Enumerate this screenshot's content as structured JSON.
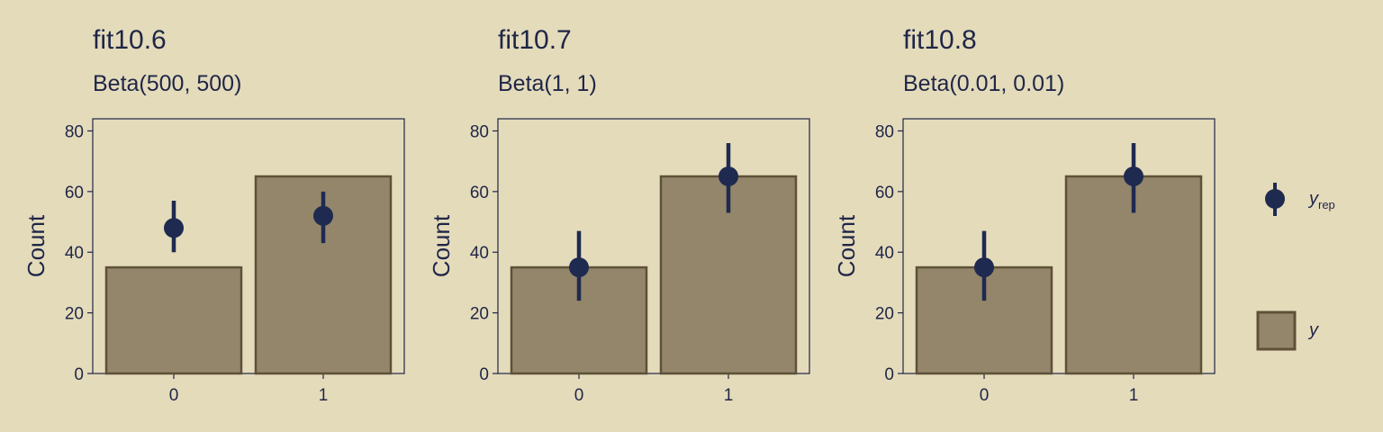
{
  "colors": {
    "background": "#e4dbbb",
    "bar_fill": "#94866a",
    "bar_stroke": "#5e5138",
    "point": "#1f2a50",
    "text": "#1f2647"
  },
  "legend": {
    "yrep_main": "y",
    "yrep_sub": "rep",
    "y_label": "y"
  },
  "chart_data": [
    {
      "type": "bar",
      "title": "fit10.6",
      "subtitle": "Beta(500, 500)",
      "xlabel": "",
      "ylabel": "Count",
      "ylim": [
        0,
        84
      ],
      "yticks": [
        0,
        20,
        40,
        60,
        80
      ],
      "categories": [
        "0",
        "1"
      ],
      "series": [
        {
          "name": "y",
          "kind": "bar",
          "values": [
            35,
            65
          ]
        },
        {
          "name": "y_rep",
          "kind": "pointrange",
          "values": [
            48,
            52
          ],
          "lower": [
            40,
            43
          ],
          "upper": [
            57,
            60
          ]
        }
      ]
    },
    {
      "type": "bar",
      "title": "fit10.7",
      "subtitle": "Beta(1, 1)",
      "xlabel": "",
      "ylabel": "Count",
      "ylim": [
        0,
        84
      ],
      "yticks": [
        0,
        20,
        40,
        60,
        80
      ],
      "categories": [
        "0",
        "1"
      ],
      "series": [
        {
          "name": "y",
          "kind": "bar",
          "values": [
            35,
            65
          ]
        },
        {
          "name": "y_rep",
          "kind": "pointrange",
          "values": [
            35,
            65
          ],
          "lower": [
            24,
            53
          ],
          "upper": [
            47,
            76
          ]
        }
      ]
    },
    {
      "type": "bar",
      "title": "fit10.8",
      "subtitle": "Beta(0.01, 0.01)",
      "xlabel": "",
      "ylabel": "Count",
      "ylim": [
        0,
        84
      ],
      "yticks": [
        0,
        20,
        40,
        60,
        80
      ],
      "categories": [
        "0",
        "1"
      ],
      "series": [
        {
          "name": "y",
          "kind": "bar",
          "values": [
            35,
            65
          ]
        },
        {
          "name": "y_rep",
          "kind": "pointrange",
          "values": [
            35,
            65
          ],
          "lower": [
            24,
            53
          ],
          "upper": [
            47,
            76
          ]
        }
      ]
    }
  ]
}
